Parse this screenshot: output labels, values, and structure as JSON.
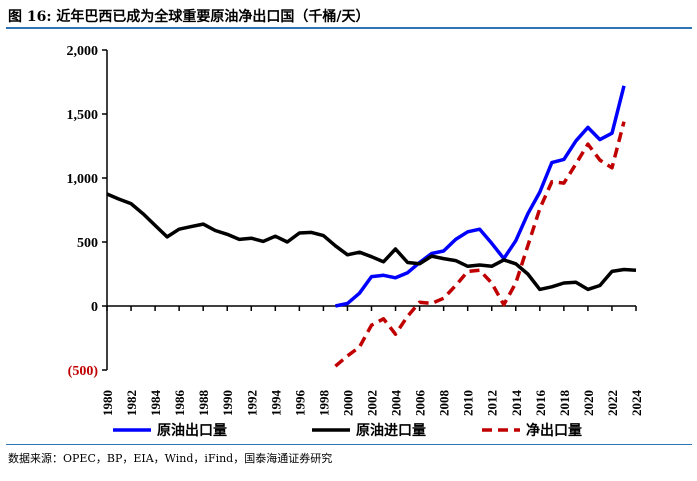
{
  "title": "图 16:  近年巴西已成为全球重要原油净出口国（千桶/天）",
  "source": "数据来源：OPEC，BP，EIA，Wind，iFind，国泰海通证券研究",
  "chart_data": {
    "type": "line",
    "title": "近年巴西已成为全球重要原油净出口国（千桶/天）",
    "xlabel": "",
    "ylabel": "",
    "ylim": [
      -500,
      2000
    ],
    "yticks": [
      -500,
      0,
      500,
      1000,
      1500,
      2000
    ],
    "ytick_labels": [
      "(500)",
      "0",
      "500",
      "1,000",
      "1,500",
      "2,000"
    ],
    "xlim": [
      1980,
      2024
    ],
    "xtick_labels": [
      "1980",
      "1982",
      "1984",
      "1986",
      "1988",
      "1990",
      "1992",
      "1994",
      "1996",
      "1998",
      "2000",
      "2002",
      "2004",
      "2006",
      "2008",
      "2010",
      "2012",
      "2014",
      "2016",
      "2018",
      "2020",
      "2022",
      "2024"
    ],
    "grid": false,
    "legend": "bottom",
    "series": [
      {
        "name": "原油出口量",
        "color": "#0000ff",
        "dash": false,
        "x": [
          1999,
          2000,
          2001,
          2002,
          2003,
          2004,
          2005,
          2006,
          2007,
          2008,
          2009,
          2010,
          2011,
          2012,
          2013,
          2014,
          2015,
          2016,
          2017,
          2018,
          2019,
          2020,
          2021,
          2022,
          2023
        ],
        "values": [
          0,
          20,
          100,
          230,
          240,
          220,
          260,
          340,
          410,
          430,
          520,
          580,
          600,
          490,
          370,
          510,
          720,
          890,
          1120,
          1145,
          1290,
          1395,
          1300,
          1350,
          1720
        ]
      },
      {
        "name": "原油进口量",
        "color": "#000000",
        "dash": false,
        "x": [
          1980,
          1981,
          1982,
          1983,
          1984,
          1985,
          1986,
          1987,
          1988,
          1989,
          1990,
          1991,
          1992,
          1993,
          1994,
          1995,
          1996,
          1997,
          1998,
          1999,
          2000,
          2001,
          2002,
          2003,
          2004,
          2005,
          2006,
          2007,
          2008,
          2009,
          2010,
          2011,
          2012,
          2013,
          2014,
          2015,
          2016,
          2017,
          2018,
          2019,
          2020,
          2021,
          2022,
          2023,
          2024
        ],
        "values": [
          875,
          835,
          800,
          720,
          630,
          540,
          600,
          620,
          640,
          590,
          560,
          520,
          530,
          505,
          545,
          500,
          570,
          575,
          550,
          470,
          400,
          420,
          385,
          345,
          445,
          340,
          330,
          390,
          370,
          355,
          310,
          320,
          310,
          360,
          330,
          250,
          130,
          150,
          180,
          185,
          130,
          160,
          270,
          285,
          280
        ]
      },
      {
        "name": "净出口量",
        "color": "#c00000",
        "dash": true,
        "x": [
          1999,
          2000,
          2001,
          2002,
          2003,
          2004,
          2005,
          2006,
          2007,
          2008,
          2009,
          2010,
          2011,
          2012,
          2013,
          2014,
          2015,
          2016,
          2017,
          2018,
          2019,
          2020,
          2021,
          2022,
          2023
        ],
        "values": [
          -470,
          -390,
          -320,
          -150,
          -100,
          -220,
          -80,
          30,
          20,
          60,
          160,
          270,
          280,
          180,
          10,
          180,
          470,
          760,
          970,
          960,
          1110,
          1265,
          1140,
          1080,
          1440
        ]
      }
    ]
  }
}
